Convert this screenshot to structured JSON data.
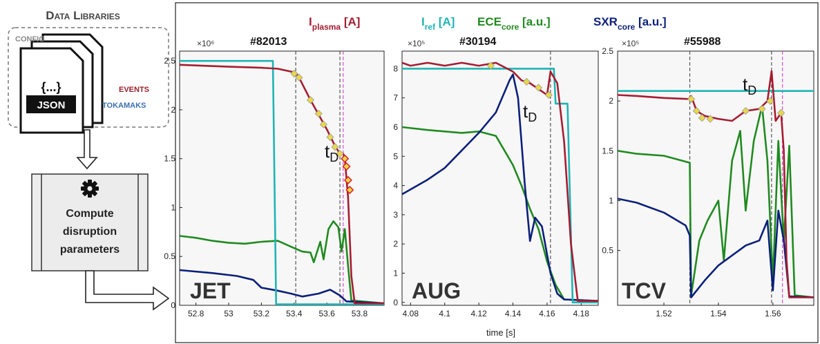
{
  "left_panel": {
    "title": "Data Libraries",
    "doc_labels": {
      "config": "CONFIG",
      "events": "EVENTS",
      "tokamaks": "TOKAMAKS",
      "json": "JSON",
      "brace": "{...}"
    },
    "process_label_lines": [
      "Compute",
      "disruption",
      "parameters"
    ],
    "icon": "gear-icon"
  },
  "legend": {
    "items": [
      {
        "main": "I",
        "sub": "plasma",
        "unit": " [A]",
        "color": "#a51c30"
      },
      {
        "main": "I",
        "sub": "ref",
        "unit": " [A]",
        "color": "#1fb4b4"
      },
      {
        "main": "ECE",
        "sub": "core",
        "unit": " [a.u.]",
        "color": "#1f8a1f"
      },
      {
        "main": "SXR",
        "sub": "core",
        "unit": " [a.u.]",
        "color": "#0a1f7a"
      }
    ]
  },
  "xlabel": "time [s]",
  "td_label": {
    "main": "t",
    "sub": "D"
  },
  "colors": {
    "iplasma": "#a51c30",
    "iref": "#1fb4b4",
    "ece": "#1f8a1f",
    "sxr": "#0a1f7a",
    "marker": "#e8d84a",
    "marker_edge": "#d22fd2"
  },
  "chart_data": [
    {
      "type": "line",
      "machine": "JET",
      "shot": "#82013",
      "multiplier": "×10⁶",
      "xlim": [
        52.7,
        53.95
      ],
      "ylim": [
        0,
        2.6
      ],
      "xticks": [
        52.8,
        53,
        53.2,
        53.4,
        53.6,
        53.8
      ],
      "xtick_labels": [
        "52.8",
        "53",
        "53.2",
        "53.4",
        "53.6",
        "53.8"
      ],
      "yticks": [
        0,
        0.5,
        1,
        1.5,
        2,
        2.5
      ],
      "ytick_labels": [
        "0",
        "0.5",
        "1",
        "1.5",
        "2",
        "2.5"
      ],
      "td": 53.68,
      "vlines": [
        53.41,
        53.68,
        53.7
      ],
      "series": [
        {
          "key": "iref",
          "points": [
            [
              52.7,
              2.5
            ],
            [
              53.27,
              2.5
            ],
            [
              53.29,
              0.01
            ],
            [
              53.95,
              0.01
            ]
          ]
        },
        {
          "key": "iplasma",
          "points": [
            [
              52.7,
              2.46
            ],
            [
              53.0,
              2.44
            ],
            [
              53.2,
              2.43
            ],
            [
              53.3,
              2.42
            ],
            [
              53.41,
              2.38
            ],
            [
              53.43,
              2.33
            ],
            [
              53.5,
              2.1
            ],
            [
              53.55,
              1.95
            ],
            [
              53.6,
              1.8
            ],
            [
              53.65,
              1.63
            ],
            [
              53.68,
              1.55
            ],
            [
              53.7,
              1.55
            ],
            [
              53.71,
              1.5
            ],
            [
              53.72,
              1.3
            ],
            [
              53.73,
              1.1
            ],
            [
              53.75,
              0.3
            ],
            [
              53.77,
              0.02
            ],
            [
              53.95,
              0.02
            ]
          ]
        },
        {
          "key": "ece",
          "points": [
            [
              52.7,
              0.71
            ],
            [
              52.8,
              0.69
            ],
            [
              52.9,
              0.66
            ],
            [
              53.0,
              0.64
            ],
            [
              53.1,
              0.63
            ],
            [
              53.2,
              0.65
            ],
            [
              53.3,
              0.66
            ],
            [
              53.38,
              0.6
            ],
            [
              53.45,
              0.55
            ],
            [
              53.5,
              0.54
            ],
            [
              53.52,
              0.44
            ],
            [
              53.56,
              0.65
            ],
            [
              53.58,
              0.47
            ],
            [
              53.61,
              0.78
            ],
            [
              53.64,
              0.86
            ],
            [
              53.67,
              0.8
            ],
            [
              53.69,
              0.55
            ],
            [
              53.71,
              0.78
            ],
            [
              53.73,
              0.4
            ],
            [
              53.75,
              0.05
            ],
            [
              53.95,
              0.02
            ]
          ]
        },
        {
          "key": "sxr",
          "points": [
            [
              52.7,
              0.36
            ],
            [
              52.9,
              0.33
            ],
            [
              53.05,
              0.3
            ],
            [
              53.15,
              0.26
            ],
            [
              53.2,
              0.18
            ],
            [
              53.3,
              0.15
            ],
            [
              53.38,
              0.12
            ],
            [
              53.45,
              0.09
            ],
            [
              53.55,
              0.12
            ],
            [
              53.62,
              0.16
            ],
            [
              53.68,
              0.1
            ],
            [
              53.72,
              0.04
            ],
            [
              53.95,
              0.02
            ]
          ]
        }
      ],
      "markers": [
        [
          53.4,
          2.37
        ],
        [
          53.43,
          2.33
        ],
        [
          53.5,
          2.1
        ],
        [
          53.55,
          1.96
        ],
        [
          53.58,
          1.85
        ],
        [
          53.62,
          1.72
        ],
        [
          53.65,
          1.62
        ],
        [
          53.68,
          1.55
        ]
      ],
      "red_markers": [
        [
          53.71,
          1.5
        ],
        [
          53.72,
          1.42
        ],
        [
          53.73,
          1.28
        ],
        [
          53.74,
          1.18
        ]
      ]
    },
    {
      "type": "line",
      "machine": "AUG",
      "shot": "#30194",
      "multiplier": "×10⁵",
      "xlim": [
        4.075,
        4.19
      ],
      "ylim": [
        -0.1,
        8.6
      ],
      "xticks": [
        4.08,
        4.1,
        4.12,
        4.14,
        4.16,
        4.18
      ],
      "xtick_labels": [
        "4.08",
        "4.1",
        "4.12",
        "4.14",
        "4.16",
        "4.18"
      ],
      "yticks": [
        0,
        1,
        2,
        3,
        4,
        5,
        6,
        7,
        8
      ],
      "ytick_labels": [
        "0",
        "1",
        "2",
        "3",
        "4",
        "5",
        "6",
        "7",
        "8"
      ],
      "td": 4.162,
      "vlines": [
        4.162
      ],
      "series": [
        {
          "key": "iref",
          "points": [
            [
              4.075,
              8.0
            ],
            [
              4.164,
              8.0
            ],
            [
              4.165,
              6.8
            ],
            [
              4.172,
              6.8
            ],
            [
              4.175,
              0.0
            ],
            [
              4.19,
              0.0
            ]
          ]
        },
        {
          "key": "iplasma",
          "points": [
            [
              4.075,
              8.2
            ],
            [
              4.08,
              8.1
            ],
            [
              4.09,
              8.2
            ],
            [
              4.1,
              8.1
            ],
            [
              4.11,
              8.2
            ],
            [
              4.12,
              8.1
            ],
            [
              4.13,
              8.2
            ],
            [
              4.14,
              7.9
            ],
            [
              4.145,
              7.6
            ],
            [
              4.15,
              7.5
            ],
            [
              4.155,
              7.3
            ],
            [
              4.16,
              7.1
            ],
            [
              4.162,
              7.9
            ],
            [
              4.166,
              7.5
            ],
            [
              4.17,
              5.5
            ],
            [
              4.174,
              2.0
            ],
            [
              4.178,
              0.05
            ],
            [
              4.19,
              0.05
            ]
          ]
        },
        {
          "key": "ece",
          "points": [
            [
              4.075,
              6.0
            ],
            [
              4.09,
              5.9
            ],
            [
              4.1,
              5.85
            ],
            [
              4.11,
              5.8
            ],
            [
              4.12,
              5.85
            ],
            [
              4.13,
              5.7
            ],
            [
              4.135,
              5.2
            ],
            [
              4.14,
              4.7
            ],
            [
              4.145,
              4.0
            ],
            [
              4.15,
              3.2
            ],
            [
              4.155,
              2.5
            ],
            [
              4.16,
              1.4
            ],
            [
              4.165,
              0.6
            ],
            [
              4.17,
              0.1
            ],
            [
              4.19,
              0.05
            ]
          ]
        },
        {
          "key": "sxr",
          "points": [
            [
              4.075,
              3.7
            ],
            [
              4.09,
              4.2
            ],
            [
              4.1,
              4.6
            ],
            [
              4.11,
              5.2
            ],
            [
              4.12,
              5.8
            ],
            [
              4.13,
              6.5
            ],
            [
              4.138,
              7.6
            ],
            [
              4.14,
              7.8
            ],
            [
              4.143,
              7.0
            ],
            [
              4.147,
              4.0
            ],
            [
              4.15,
              2.1
            ],
            [
              4.153,
              2.9
            ],
            [
              4.157,
              2.6
            ],
            [
              4.162,
              1.0
            ],
            [
              4.166,
              0.3
            ],
            [
              4.17,
              0.1
            ],
            [
              4.19,
              0.05
            ]
          ]
        }
      ],
      "markers": [
        [
          4.127,
          8.1
        ],
        [
          4.148,
          7.55
        ],
        [
          4.155,
          7.35
        ],
        [
          4.161,
          7.1
        ]
      ],
      "red_markers": []
    },
    {
      "type": "line",
      "machine": "TCV",
      "shot": "#55988",
      "multiplier": "×10⁵",
      "xlim": [
        1.503,
        1.575
      ],
      "ylim": [
        -0.05,
        2.5
      ],
      "xticks": [
        1.52,
        1.54,
        1.56
      ],
      "xtick_labels": [
        "1.52",
        "1.54",
        "1.56"
      ],
      "yticks": [
        0.5,
        1,
        1.5,
        2,
        2.5
      ],
      "ytick_labels": [
        "0.5",
        "1",
        "1.5",
        "2",
        "2.5"
      ],
      "td": 1.5595,
      "vlines": [
        1.5295,
        1.5595,
        1.5635
      ],
      "series": [
        {
          "key": "iref",
          "points": [
            [
              1.503,
              2.1
            ],
            [
              1.575,
              2.1
            ]
          ]
        },
        {
          "key": "iplasma",
          "points": [
            [
              1.503,
              2.06
            ],
            [
              1.51,
              2.05
            ],
            [
              1.52,
              2.03
            ],
            [
              1.529,
              2.02
            ],
            [
              1.53,
              2.05
            ],
            [
              1.532,
              1.9
            ],
            [
              1.535,
              1.85
            ],
            [
              1.54,
              1.82
            ],
            [
              1.545,
              1.8
            ],
            [
              1.55,
              1.9
            ],
            [
              1.555,
              1.92
            ],
            [
              1.558,
              2.0
            ],
            [
              1.5595,
              2.3
            ],
            [
              1.561,
              1.8
            ],
            [
              1.563,
              1.88
            ],
            [
              1.564,
              1.5
            ],
            [
              1.565,
              0.4
            ],
            [
              1.566,
              0.03
            ],
            [
              1.575,
              0.03
            ]
          ]
        },
        {
          "key": "ece",
          "points": [
            [
              1.503,
              1.5
            ],
            [
              1.51,
              1.47
            ],
            [
              1.52,
              1.45
            ],
            [
              1.5295,
              1.38
            ],
            [
              1.53,
              0.05
            ],
            [
              1.533,
              0.6
            ],
            [
              1.536,
              0.8
            ],
            [
              1.54,
              1.0
            ],
            [
              1.542,
              0.4
            ],
            [
              1.545,
              1.4
            ],
            [
              1.548,
              1.7
            ],
            [
              1.55,
              0.9
            ],
            [
              1.553,
              1.6
            ],
            [
              1.556,
              1.95
            ],
            [
              1.558,
              1.4
            ],
            [
              1.56,
              0.2
            ],
            [
              1.562,
              1.6
            ],
            [
              1.564,
              0.6
            ],
            [
              1.566,
              1.55
            ],
            [
              1.568,
              0.05
            ],
            [
              1.575,
              0.03
            ]
          ]
        },
        {
          "key": "sxr",
          "points": [
            [
              1.503,
              1.02
            ],
            [
              1.51,
              0.98
            ],
            [
              1.52,
              0.88
            ],
            [
              1.528,
              0.75
            ],
            [
              1.5295,
              0.65
            ],
            [
              1.53,
              0.03
            ],
            [
              1.535,
              0.2
            ],
            [
              1.54,
              0.35
            ],
            [
              1.545,
              0.45
            ],
            [
              1.55,
              0.55
            ],
            [
              1.555,
              0.6
            ],
            [
              1.558,
              0.8
            ],
            [
              1.56,
              0.1
            ],
            [
              1.562,
              0.9
            ],
            [
              1.564,
              0.6
            ],
            [
              1.566,
              0.04
            ],
            [
              1.575,
              0.03
            ]
          ]
        }
      ],
      "markers": [
        [
          1.53,
          2.02
        ],
        [
          1.532,
          1.9
        ],
        [
          1.534,
          1.83
        ],
        [
          1.537,
          1.82
        ],
        [
          1.55,
          1.9
        ],
        [
          1.556,
          1.92
        ],
        [
          1.559,
          2.0
        ],
        [
          1.563,
          1.88
        ]
      ],
      "red_markers": []
    }
  ]
}
